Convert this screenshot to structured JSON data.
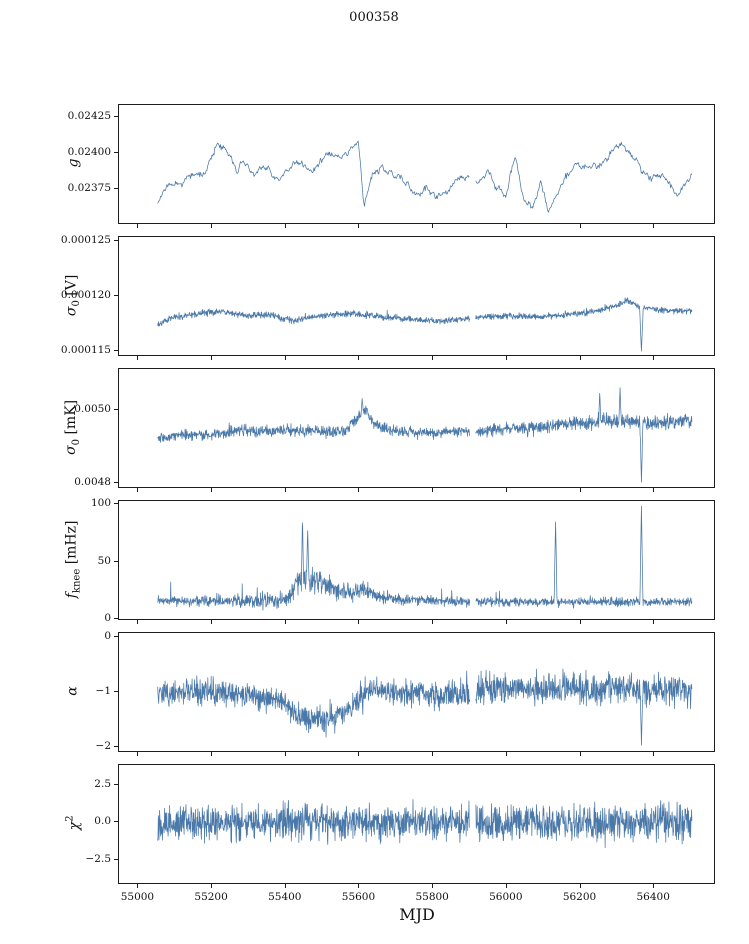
{
  "title": "000358",
  "colors": {
    "line": "#4a78a8",
    "axis": "#1c1c1c",
    "background": "#ffffff"
  },
  "x_axis": {
    "label": "MJD",
    "lim": [
      54950,
      56565
    ],
    "ticks": [
      55000,
      55200,
      55400,
      55600,
      55800,
      56000,
      56200,
      56400
    ],
    "tick_labels": [
      "55000",
      "55200",
      "55400",
      "55600",
      "55800",
      "56000",
      "56200",
      "56400"
    ]
  },
  "chart_data": [
    {
      "type": "line",
      "id": "g",
      "ylabel_text": "g",
      "ylabel_parts": [
        {
          "t": "g",
          "i": 1
        }
      ],
      "ylim": [
        0.02352,
        0.02433
      ],
      "yticks": [
        0.02375,
        0.024,
        0.02425
      ],
      "ytick_labels": [
        "0.02375",
        "0.02400",
        "0.02425"
      ],
      "x_range": [
        55055,
        56505
      ],
      "n": 750,
      "seed": 11,
      "trend": [
        [
          55055,
          0.02366
        ],
        [
          55075,
          0.02374
        ],
        [
          55110,
          0.02378
        ],
        [
          55150,
          0.02386
        ],
        [
          55185,
          0.02392
        ],
        [
          55215,
          0.02412
        ],
        [
          55235,
          0.02408
        ],
        [
          55255,
          0.02398
        ],
        [
          55270,
          0.02384
        ],
        [
          55290,
          0.02391
        ],
        [
          55320,
          0.02388
        ],
        [
          55355,
          0.02385
        ],
        [
          55385,
          0.0238
        ],
        [
          55420,
          0.02392
        ],
        [
          55455,
          0.02394
        ],
        [
          55495,
          0.02397
        ],
        [
          55540,
          0.024
        ],
        [
          55575,
          0.02403
        ],
        [
          55600,
          0.02407
        ],
        [
          55615,
          0.02363
        ],
        [
          55635,
          0.02385
        ],
        [
          55665,
          0.02389
        ],
        [
          55695,
          0.02384
        ],
        [
          55730,
          0.02377
        ],
        [
          55760,
          0.02372
        ],
        [
          55785,
          0.0238
        ],
        [
          55810,
          0.02368
        ],
        [
          55840,
          0.02376
        ],
        [
          55870,
          0.02382
        ],
        [
          55900,
          0.02386
        ],
        [
          55925,
          0.02382
        ],
        [
          55950,
          0.02391
        ],
        [
          55975,
          0.02378
        ],
        [
          56000,
          0.02372
        ],
        [
          56025,
          0.02398
        ],
        [
          56045,
          0.02368
        ],
        [
          56070,
          0.02363
        ],
        [
          56095,
          0.0238
        ],
        [
          56115,
          0.0236
        ],
        [
          56140,
          0.02372
        ],
        [
          56165,
          0.02379
        ],
        [
          56195,
          0.0239
        ],
        [
          56225,
          0.02394
        ],
        [
          56255,
          0.02391
        ],
        [
          56285,
          0.02397
        ],
        [
          56320,
          0.02406
        ],
        [
          56345,
          0.02396
        ],
        [
          56370,
          0.0239
        ],
        [
          56400,
          0.02384
        ],
        [
          56435,
          0.02379
        ],
        [
          56470,
          0.02373
        ],
        [
          56505,
          0.02379
        ]
      ],
      "amp": [
        [
          55055,
          2e-05
        ],
        [
          56505,
          2e-05
        ]
      ],
      "smooth_win": 9,
      "smooth_amp": 8e-05,
      "spikes": [],
      "spike_prob": 0.0,
      "spike_scale": 0.0,
      "spike_sign": 0,
      "gaps": [
        [
          55902,
          55918
        ]
      ],
      "clamp": [
        0.02353,
        0.02432
      ]
    },
    {
      "type": "line",
      "id": "sigma0-v",
      "ylabel_text": "sigma_0 [V]",
      "ylabel_parts": [
        {
          "t": "σ",
          "i": 1
        },
        {
          "t": "0",
          "sub": 1
        },
        {
          "t": " [V]"
        }
      ],
      "ylim": [
        0.0001146,
        0.0001254
      ],
      "yticks": [
        0.000115,
        0.00012,
        0.000125
      ],
      "ytick_labels": [
        "0.000115",
        "0.000120",
        "0.000125"
      ],
      "x_range": [
        55055,
        56505
      ],
      "n": 1600,
      "seed": 22,
      "trend": [
        [
          55055,
          0.0001174
        ],
        [
          55090,
          0.000118
        ],
        [
          55150,
          0.0001183
        ],
        [
          55220,
          0.0001186
        ],
        [
          55260,
          0.0001184
        ],
        [
          55300,
          0.0001182
        ],
        [
          55360,
          0.0001183
        ],
        [
          55420,
          0.0001177
        ],
        [
          55460,
          0.000118
        ],
        [
          55520,
          0.0001183
        ],
        [
          55580,
          0.0001184
        ],
        [
          55640,
          0.0001182
        ],
        [
          55700,
          0.000118
        ],
        [
          55760,
          0.0001178
        ],
        [
          55820,
          0.0001177
        ],
        [
          55880,
          0.0001179
        ],
        [
          55940,
          0.0001181
        ],
        [
          56000,
          0.0001182
        ],
        [
          56080,
          0.0001181
        ],
        [
          56160,
          0.0001183
        ],
        [
          56240,
          0.0001186
        ],
        [
          56300,
          0.0001191
        ],
        [
          56330,
          0.0001196
        ],
        [
          56360,
          0.0001191
        ],
        [
          56420,
          0.0001187
        ],
        [
          56505,
          0.0001186
        ]
      ],
      "amp": [
        [
          55055,
          4e-07
        ],
        [
          55400,
          4.5e-07
        ],
        [
          56000,
          4e-07
        ],
        [
          56300,
          4.5e-07
        ],
        [
          56505,
          4e-07
        ]
      ],
      "smooth_win": 0,
      "smooth_amp": 0,
      "spikes": [
        {
          "x": 56368,
          "v": 0.0001149,
          "w": 5
        }
      ],
      "spike_prob": 0.004,
      "spike_scale": 6e-07,
      "spike_sign": 0,
      "gaps": [
        [
          55902,
          55918
        ]
      ],
      "clamp": [
        0.0001148,
        0.0001252
      ]
    },
    {
      "type": "line",
      "id": "sigma0-mk",
      "ylabel_text": "sigma_0 [mK]",
      "ylabel_parts": [
        {
          "t": "σ",
          "i": 1
        },
        {
          "t": "0",
          "sub": 1
        },
        {
          "t": " [mK]"
        }
      ],
      "ylim": [
        0.00479,
        0.00511
      ],
      "yticks": [
        0.0048,
        0.005
      ],
      "ytick_labels": [
        "0.0048",
        "0.0050"
      ],
      "x_range": [
        55055,
        56505
      ],
      "n": 1600,
      "seed": 33,
      "trend": [
        [
          55055,
          0.00492
        ],
        [
          55120,
          0.00493
        ],
        [
          55200,
          0.00493
        ],
        [
          55280,
          0.004945
        ],
        [
          55340,
          0.00494
        ],
        [
          55420,
          0.004945
        ],
        [
          55500,
          0.00494
        ],
        [
          55560,
          0.00494
        ],
        [
          55600,
          0.00498
        ],
        [
          55620,
          0.005
        ],
        [
          55640,
          0.00496
        ],
        [
          55700,
          0.00494
        ],
        [
          55780,
          0.004935
        ],
        [
          55860,
          0.00494
        ],
        [
          55940,
          0.00494
        ],
        [
          56000,
          0.00495
        ],
        [
          56080,
          0.00495
        ],
        [
          56160,
          0.00496
        ],
        [
          56220,
          0.004965
        ],
        [
          56280,
          0.00497
        ],
        [
          56340,
          0.00497
        ],
        [
          56400,
          0.00496
        ],
        [
          56460,
          0.00497
        ],
        [
          56505,
          0.00497
        ]
      ],
      "amp": [
        [
          55055,
          2e-05
        ],
        [
          55300,
          2.2e-05
        ],
        [
          55600,
          2.4e-05
        ],
        [
          55900,
          2e-05
        ],
        [
          56050,
          2.6e-05
        ],
        [
          56250,
          3e-05
        ],
        [
          56505,
          2.6e-05
        ]
      ],
      "smooth_win": 0,
      "smooth_amp": 0,
      "spikes": [
        {
          "x": 56368,
          "v": 0.0048,
          "w": 4
        },
        {
          "x": 56310,
          "v": 0.00506,
          "w": 3
        },
        {
          "x": 56255,
          "v": 0.00505,
          "w": 3
        },
        {
          "x": 55610,
          "v": 0.00503,
          "w": 3
        }
      ],
      "spike_prob": 0.004,
      "spike_scale": 3e-05,
      "spike_sign": 0,
      "gaps": [
        [
          55902,
          55918
        ]
      ],
      "clamp": [
        0.004795,
        0.005105
      ]
    },
    {
      "type": "line",
      "id": "fknee",
      "ylabel_text": "f_knee [mHz]",
      "ylabel_parts": [
        {
          "t": "f",
          "i": 1
        },
        {
          "t": "knee",
          "sub": 1
        },
        {
          "t": " [mHz]"
        }
      ],
      "ylim": [
        0,
        103
      ],
      "yticks": [
        0,
        50,
        100
      ],
      "ytick_labels": [
        "0",
        "50",
        "100"
      ],
      "x_range": [
        55055,
        56505
      ],
      "n": 1600,
      "seed": 44,
      "trend": [
        [
          55055,
          16
        ],
        [
          55380,
          16
        ],
        [
          55415,
          20
        ],
        [
          55435,
          34
        ],
        [
          55455,
          36
        ],
        [
          55475,
          33
        ],
        [
          55500,
          30
        ],
        [
          55530,
          26
        ],
        [
          55560,
          24
        ],
        [
          55590,
          23
        ],
        [
          55605,
          27
        ],
        [
          55618,
          25
        ],
        [
          55640,
          21
        ],
        [
          55670,
          19
        ],
        [
          55710,
          17
        ],
        [
          55800,
          16
        ],
        [
          55900,
          15
        ],
        [
          56505,
          15
        ]
      ],
      "amp": [
        [
          55055,
          6
        ],
        [
          55420,
          10
        ],
        [
          55440,
          18
        ],
        [
          55470,
          17
        ],
        [
          55520,
          14
        ],
        [
          55560,
          11
        ],
        [
          55610,
          12
        ],
        [
          55650,
          9
        ],
        [
          55700,
          7
        ],
        [
          55780,
          6
        ],
        [
          56505,
          6
        ]
      ],
      "smooth_win": 0,
      "smooth_amp": 0,
      "spikes": [
        {
          "x": 55448,
          "v": 90,
          "w": 3
        },
        {
          "x": 55462,
          "v": 80,
          "w": 3
        },
        {
          "x": 56135,
          "v": 85,
          "w": 4
        },
        {
          "x": 56368,
          "v": 100,
          "w": 4
        }
      ],
      "spike_prob": 0.012,
      "spike_scale": 15,
      "spike_sign": 1,
      "gaps": [
        [
          55902,
          55918
        ]
      ],
      "clamp": [
        5,
        102
      ]
    },
    {
      "type": "line",
      "id": "alpha",
      "ylabel_text": "alpha",
      "ylabel_parts": [
        {
          "t": "α",
          "i": 1
        }
      ],
      "ylim": [
        -2.08,
        0.08
      ],
      "yticks": [
        0,
        -1,
        -2
      ],
      "ytick_labels": [
        "0",
        "−1",
        "−2"
      ],
      "x_range": [
        55055,
        56505
      ],
      "n": 1600,
      "seed": 55,
      "trend": [
        [
          55055,
          -1.02
        ],
        [
          55150,
          -1.0
        ],
        [
          55250,
          -1.0
        ],
        [
          55320,
          -1.1
        ],
        [
          55360,
          -1.15
        ],
        [
          55400,
          -1.2
        ],
        [
          55435,
          -1.45
        ],
        [
          55475,
          -1.5
        ],
        [
          55520,
          -1.5
        ],
        [
          55555,
          -1.4
        ],
        [
          55585,
          -1.25
        ],
        [
          55615,
          -1.0
        ],
        [
          55650,
          -0.95
        ],
        [
          55700,
          -1.0
        ],
        [
          55750,
          -1.05
        ],
        [
          55800,
          -1.05
        ],
        [
          55850,
          -1.05
        ],
        [
          55900,
          -1.0
        ],
        [
          55950,
          -0.95
        ],
        [
          56050,
          -0.95
        ],
        [
          56150,
          -0.95
        ],
        [
          56250,
          -0.95
        ],
        [
          56350,
          -0.95
        ],
        [
          56450,
          -0.95
        ],
        [
          56505,
          -0.95
        ]
      ],
      "amp": [
        [
          55055,
          0.33
        ],
        [
          55250,
          0.36
        ],
        [
          55400,
          0.35
        ],
        [
          55550,
          0.35
        ],
        [
          55650,
          0.33
        ],
        [
          55800,
          0.36
        ],
        [
          55950,
          0.42
        ],
        [
          56505,
          0.42
        ]
      ],
      "smooth_win": 0,
      "smooth_amp": 0,
      "spikes": [
        {
          "x": 56368,
          "v": -2.0,
          "w": 3
        }
      ],
      "spike_prob": 0.006,
      "spike_scale": 0.35,
      "spike_sign": 0,
      "gaps": [
        [
          55902,
          55918
        ]
      ],
      "clamp": [
        -2.05,
        0.05
      ]
    },
    {
      "type": "line",
      "id": "chi2",
      "ylabel_text": "chi^2",
      "ylabel_parts": [
        {
          "t": "χ",
          "i": 1
        },
        {
          "t": "2",
          "sup": 1
        }
      ],
      "ylim": [
        -4.0,
        3.8
      ],
      "yticks": [
        2.5,
        0.0,
        -2.5
      ],
      "ytick_labels": [
        "2.5",
        "0.0",
        "−2.5"
      ],
      "x_range": [
        55055,
        56505
      ],
      "n": 1700,
      "seed": 66,
      "trend": [
        [
          55055,
          0
        ],
        [
          56505,
          0
        ]
      ],
      "amp": [
        [
          55055,
          1.6
        ],
        [
          55500,
          1.7
        ],
        [
          56000,
          1.6
        ],
        [
          56505,
          1.7
        ]
      ],
      "smooth_win": 0,
      "smooth_amp": 0,
      "spikes": [],
      "spike_prob": 0.015,
      "spike_scale": 1.1,
      "spike_sign": 0,
      "gaps": [
        [
          55902,
          55918
        ]
      ],
      "clamp": [
        -3.3,
        3.2
      ]
    }
  ]
}
